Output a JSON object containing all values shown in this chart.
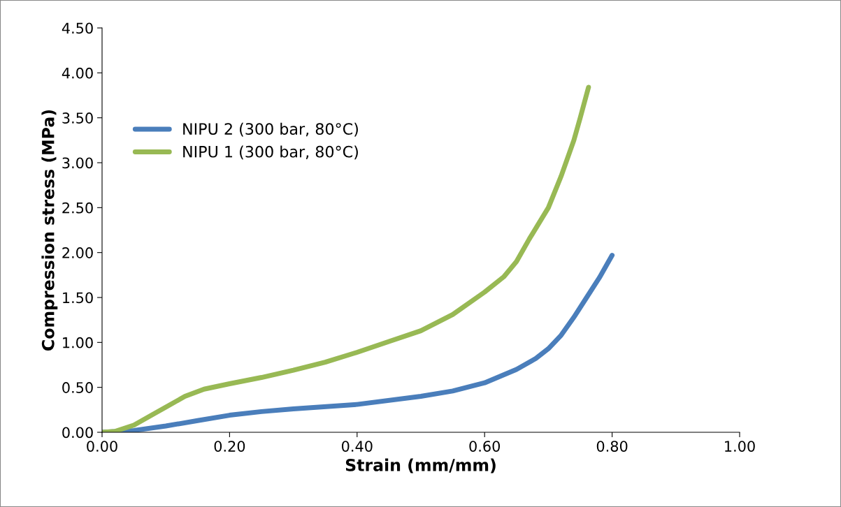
{
  "chart_data": {
    "type": "line",
    "xlabel": "Strain (mm/mm)",
    "ylabel": "Compression stress (MPa)",
    "xlim": [
      0,
      1
    ],
    "xticks": [
      {
        "value": 0,
        "label": "0.00"
      },
      {
        "value": 0.2,
        "label": "0.20"
      },
      {
        "value": 0.4,
        "label": "0.40"
      },
      {
        "value": 0.6,
        "label": "0.60"
      },
      {
        "value": 0.8,
        "label": "0.80"
      },
      {
        "value": 1,
        "label": "1.00"
      }
    ],
    "ylim": [
      0,
      4.5
    ],
    "yticks": [
      {
        "value": 0,
        "label": "0.00"
      },
      {
        "value": 0.5,
        "label": "0.50"
      },
      {
        "value": 1,
        "label": "1.00"
      },
      {
        "value": 1.5,
        "label": "1.50"
      },
      {
        "value": 2,
        "label": "2.00"
      },
      {
        "value": 2.5,
        "label": "2.50"
      },
      {
        "value": 3,
        "label": "3.00"
      },
      {
        "value": 3.5,
        "label": "3.50"
      },
      {
        "value": 4,
        "label": "4.00"
      },
      {
        "value": 4.5,
        "label": "4.50"
      }
    ],
    "grid": false,
    "legend": "top left",
    "marker": "none",
    "line_style": "solid",
    "series": [
      {
        "name": "NIPU 2 (300 bar, 80°C)",
        "color": "#4a7ebb",
        "x": [
          0,
          0.05,
          0.1,
          0.15,
          0.2,
          0.25,
          0.3,
          0.4,
          0.5,
          0.55,
          0.6,
          0.65,
          0.68,
          0.7,
          0.72,
          0.74,
          0.76,
          0.78,
          0.8
        ],
        "values": [
          0,
          0.02,
          0.07,
          0.13,
          0.19,
          0.23,
          0.26,
          0.31,
          0.4,
          0.46,
          0.55,
          0.7,
          0.82,
          0.93,
          1.08,
          1.28,
          1.5,
          1.72,
          1.97
        ]
      },
      {
        "name": "NIPU 1 (300 bar, 80°C)",
        "color": "#98b954",
        "x": [
          0,
          0.02,
          0.05,
          0.08,
          0.1,
          0.13,
          0.16,
          0.2,
          0.25,
          0.3,
          0.35,
          0.4,
          0.45,
          0.5,
          0.55,
          0.6,
          0.63,
          0.65,
          0.67,
          0.7,
          0.72,
          0.74,
          0.75,
          0.763
        ],
        "values": [
          0,
          0.01,
          0.08,
          0.2,
          0.28,
          0.4,
          0.48,
          0.54,
          0.61,
          0.69,
          0.78,
          0.89,
          1.01,
          1.13,
          1.31,
          1.56,
          1.73,
          1.9,
          2.15,
          2.5,
          2.85,
          3.25,
          3.5,
          3.84
        ]
      }
    ]
  }
}
